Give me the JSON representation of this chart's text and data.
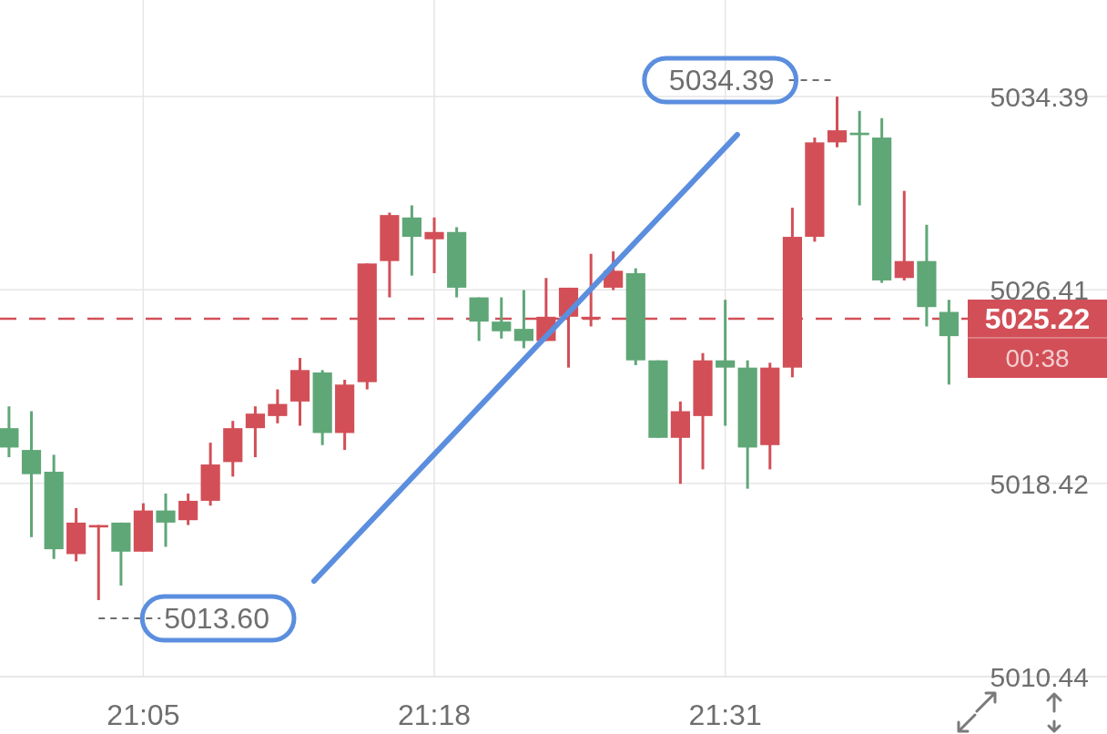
{
  "chart_data": {
    "type": "candlestick",
    "x": [
      20.9833,
      21,
      21.0167,
      21.0333,
      21.05,
      21.0667,
      21.0833,
      21.1,
      21.1167,
      21.1333,
      21.15,
      21.1667,
      21.1833,
      21.2,
      21.2167,
      21.2333,
      21.25,
      21.2667,
      21.2833,
      21.3,
      21.3167,
      21.3333,
      21.35,
      21.3667,
      21.3833,
      21.4,
      21.4167,
      21.4333,
      21.45,
      21.4667,
      21.4833,
      21.5,
      21.5167,
      21.5333,
      21.55,
      21.5667,
      21.5833,
      21.6,
      21.6167,
      21.6333,
      21.65,
      21.6667,
      21.6833
    ],
    "ohlc": [
      [
        5020.7,
        5021.6,
        5019.5,
        5019.9
      ],
      [
        5019.8,
        5021.4,
        5016.2,
        5018.8
      ],
      [
        5018.9,
        5019.6,
        5015.3,
        5015.7
      ],
      [
        5015.5,
        5017.4,
        5015.2,
        5016.8
      ],
      [
        5016.6,
        5016.7,
        5013.6,
        5016.7
      ],
      [
        5016.8,
        5016.8,
        5014.2,
        5015.6
      ],
      [
        5015.6,
        5017.6,
        5015.6,
        5017.3
      ],
      [
        5017.3,
        5018.0,
        5015.8,
        5016.8
      ],
      [
        5016.9,
        5018.0,
        5016.7,
        5017.7
      ],
      [
        5017.7,
        5020.1,
        5017.5,
        5019.2
      ],
      [
        5019.3,
        5021.0,
        5018.7,
        5020.7
      ],
      [
        5020.7,
        5021.6,
        5019.5,
        5021.3
      ],
      [
        5021.2,
        5022.3,
        5020.9,
        5021.7
      ],
      [
        5021.8,
        5023.6,
        5020.8,
        5023.1
      ],
      [
        5023.0,
        5023.1,
        5020.0,
        5020.5
      ],
      [
        5020.5,
        5022.7,
        5019.8,
        5022.5
      ],
      [
        5022.6,
        5027.5,
        5022.3,
        5027.5
      ],
      [
        5027.6,
        5029.6,
        5026.1,
        5029.5
      ],
      [
        5029.4,
        5029.9,
        5027.0,
        5028.6
      ],
      [
        5028.5,
        5029.4,
        5027.1,
        5028.8
      ],
      [
        5028.8,
        5029.0,
        5026.1,
        5026.5
      ],
      [
        5026.1,
        5026.1,
        5024.3,
        5025.1
      ],
      [
        5025.1,
        5026.1,
        5024.4,
        5024.7
      ],
      [
        5024.8,
        5026.4,
        5024.0,
        5024.3
      ],
      [
        5024.3,
        5026.9,
        5024.3,
        5025.3
      ],
      [
        5025.3,
        5026.5,
        5023.2,
        5026.5
      ],
      [
        5025.2,
        5027.9,
        5024.9,
        5025.3
      ],
      [
        5026.5,
        5028.0,
        5026.4,
        5027.2
      ],
      [
        5027.1,
        5027.3,
        5023.3,
        5023.5
      ],
      [
        5023.5,
        5023.5,
        5020.3,
        5020.3
      ],
      [
        5020.3,
        5021.8,
        5018.4,
        5021.4
      ],
      [
        5021.2,
        5023.8,
        5019.0,
        5023.5
      ],
      [
        5023.5,
        5026.0,
        5020.8,
        5023.2
      ],
      [
        5023.2,
        5023.5,
        5018.2,
        5019.9
      ],
      [
        5020.0,
        5023.4,
        5019.0,
        5023.2
      ],
      [
        5023.2,
        5029.8,
        5022.8,
        5028.6
      ],
      [
        5028.6,
        5032.7,
        5028.4,
        5032.5
      ],
      [
        5032.5,
        5034.39,
        5032.3,
        5033.0
      ],
      [
        5032.9,
        5033.8,
        5029.9,
        5032.8
      ],
      [
        5032.7,
        5033.5,
        5026.7,
        5026.8
      ],
      [
        5026.9,
        5030.5,
        5026.8,
        5027.6
      ],
      [
        5027.6,
        5029.1,
        5024.9,
        5025.7
      ],
      [
        5025.5,
        5026.0,
        5022.5,
        5024.5
      ]
    ],
    "colors": [
      "#5fa777",
      "#5fa777",
      "#5fa777",
      "#d24f57",
      "#d24f57",
      "#5fa777",
      "#d24f57",
      "#5fa777",
      "#d24f57",
      "#d24f57",
      "#d24f57",
      "#d24f57",
      "#d24f57",
      "#d24f57",
      "#5fa777",
      "#d24f57",
      "#d24f57",
      "#d24f57",
      "#5fa777",
      "#d24f57",
      "#5fa777",
      "#5fa777",
      "#5fa777",
      "#5fa777",
      "#d24f57",
      "#d24f57",
      "#d24f57",
      "#d24f57",
      "#5fa777",
      "#5fa777",
      "#d24f57",
      "#d24f57",
      "#5fa777",
      "#5fa777",
      "#d24f57",
      "#d24f57",
      "#d24f57",
      "#d24f57",
      "#5fa777",
      "#5fa777",
      "#d24f57",
      "#5fa777",
      "#5fa777"
    ],
    "series": [
      {
        "type": "line",
        "x": [
          21.2105,
          21.5257
        ],
        "values": [
          5014.39,
          5032.82
        ],
        "color": "#5b8ede"
      }
    ],
    "xlim": [
      20.9766,
      21.801
    ],
    "xticks": [
      {
        "value": 21.0833,
        "label": "21:05"
      },
      {
        "value": 21.3,
        "label": "21:18"
      },
      {
        "value": 21.5167,
        "label": "21:31"
      }
    ],
    "ylim": [
      5010.44,
      5038.38
    ],
    "yticks": [
      5010.44,
      5018.42,
      5026.41,
      5034.39
    ],
    "grid": true,
    "ref_lines": [
      {
        "axis": "y",
        "value": 5025.22,
        "label": "5025.22",
        "color": "#d24f57",
        "line_style": "dashed"
      }
    ],
    "annotations": [
      {
        "text": "5034.39",
        "x": 21.6,
        "y": 5034.39
      },
      {
        "text": "5013.60",
        "x": 21.05,
        "y": 5013.6
      },
      "00:38"
    ]
  }
}
